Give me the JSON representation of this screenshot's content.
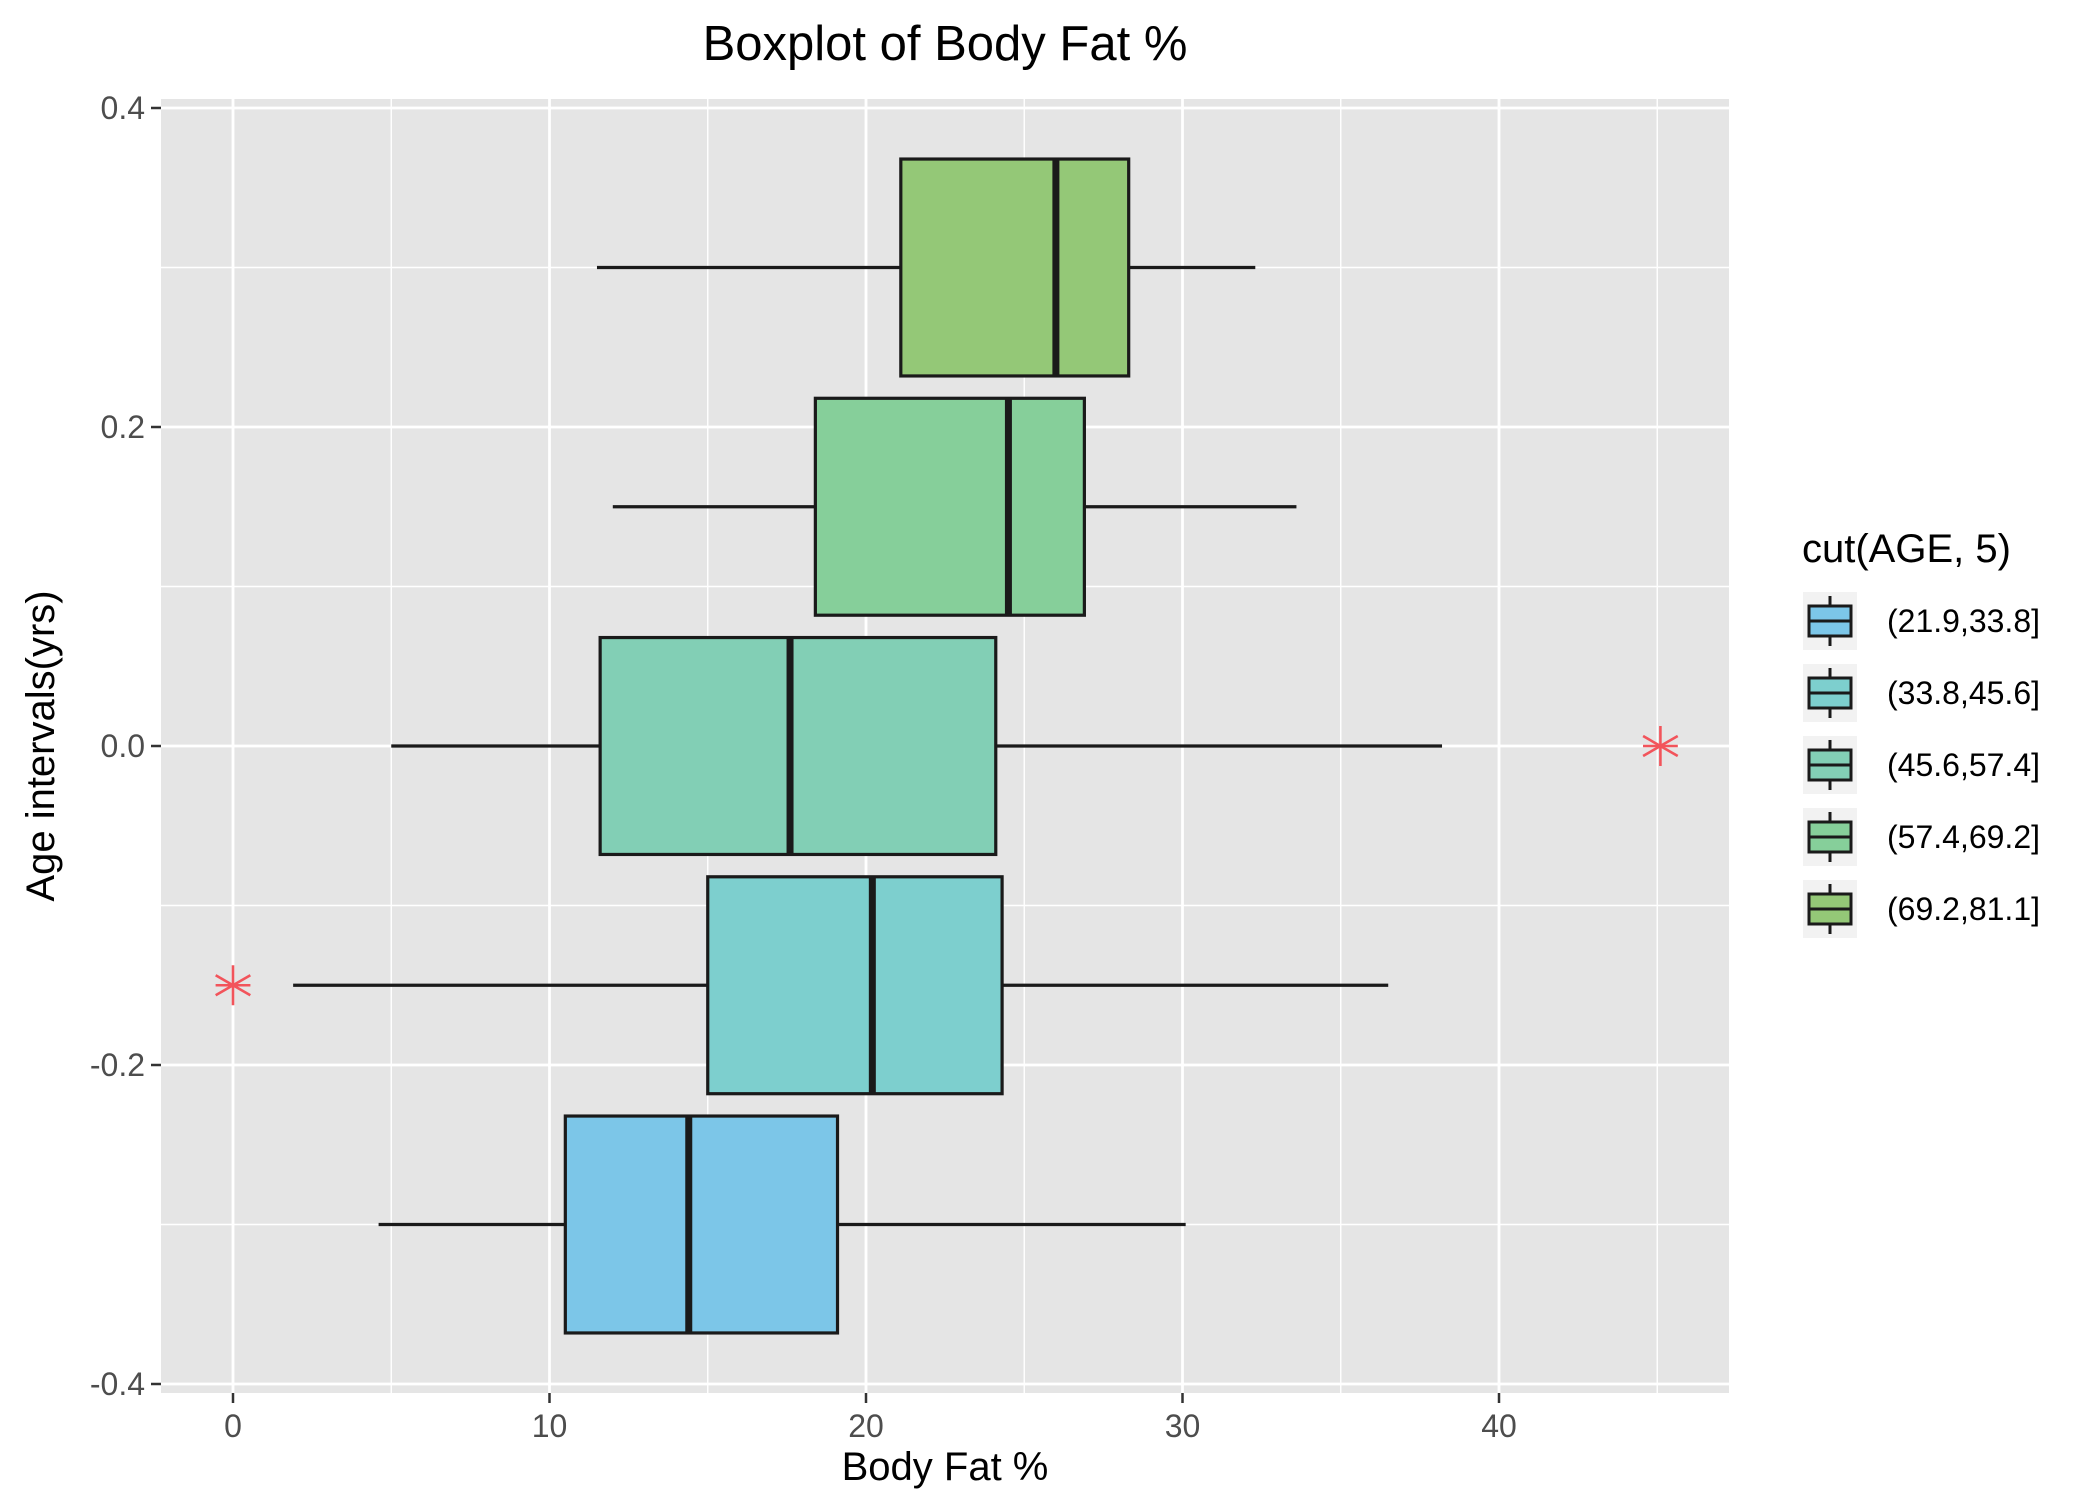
{
  "chart_data": {
    "type": "boxplot",
    "orientation": "horizontal",
    "title": "Boxplot of Body Fat %",
    "xlabel": "Body Fat %",
    "ylabel": "Age intervals(yrs)",
    "xlim": [
      -2.3,
      47.3
    ],
    "ylim": [
      -0.4,
      0.4
    ],
    "x_ticks": [
      0,
      10,
      20,
      30,
      40
    ],
    "x_tick_labels": [
      "0",
      "10",
      "20",
      "30",
      "40"
    ],
    "y_ticks": [
      -0.4,
      -0.2,
      0.0,
      0.2,
      0.4
    ],
    "y_tick_labels": [
      "-0.4",
      "-0.2",
      "0.0",
      "0.2",
      "0.4"
    ],
    "grid": true,
    "legend": {
      "title": "cut(AGE, 5)",
      "position": "right"
    },
    "series": [
      {
        "name": "(21.9,33.8]",
        "color": "#7cc6e8",
        "y": -0.3,
        "whisker_low": 4.6,
        "q1": 10.5,
        "median": 14.4,
        "q3": 19.1,
        "whisker_high": 30.1,
        "outliers": []
      },
      {
        "name": "(33.8,45.6]",
        "color": "#7dcfce",
        "y": -0.15,
        "whisker_low": 1.9,
        "q1": 15.0,
        "median": 20.2,
        "q3": 24.3,
        "whisker_high": 36.5,
        "outliers": [
          0.0
        ]
      },
      {
        "name": "(45.6,57.4]",
        "color": "#82cfb5",
        "y": 0.0,
        "whisker_low": 5.0,
        "q1": 11.6,
        "median": 17.6,
        "q3": 24.1,
        "whisker_high": 38.2,
        "outliers": [
          45.1
        ]
      },
      {
        "name": "(57.4,69.2]",
        "color": "#86cf9a",
        "y": 0.15,
        "whisker_low": 12.0,
        "q1": 18.4,
        "median": 24.5,
        "q3": 26.9,
        "whisker_high": 33.6,
        "outliers": []
      },
      {
        "name": "(69.2,81.1]",
        "color": "#94c877",
        "y": 0.3,
        "whisker_low": 11.5,
        "q1": 21.1,
        "median": 26.0,
        "q3": 28.3,
        "whisker_high": 32.3,
        "outliers": []
      }
    ],
    "box_half_height": 0.068,
    "outlier_color": "#f2545b",
    "panel_background": "#e5e5e5",
    "grid_color": "#ffffff"
  }
}
